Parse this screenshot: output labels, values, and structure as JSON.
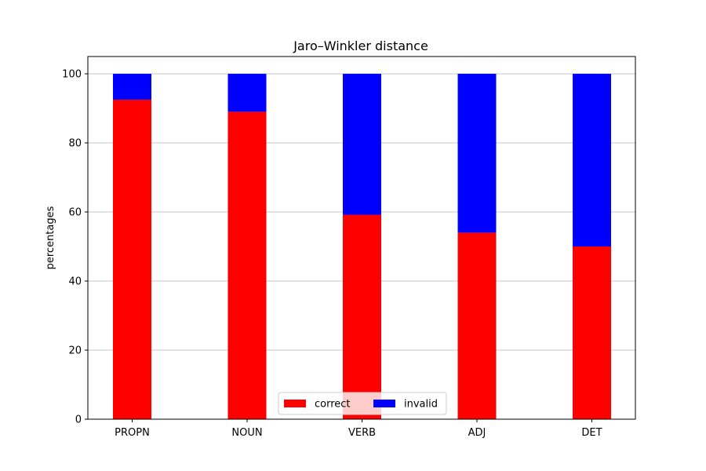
{
  "chart_data": {
    "type": "bar",
    "stacked": true,
    "title": "Jaro–Winkler distance",
    "xlabel": "",
    "ylabel": "percentages",
    "ylim": [
      0,
      105
    ],
    "yticks": [
      0,
      20,
      40,
      60,
      80,
      100
    ],
    "categories": [
      "PROPN",
      "NOUN",
      "VERB",
      "ADJ",
      "DET"
    ],
    "series": [
      {
        "name": "correct",
        "color": "#ff0000",
        "values": [
          92.5,
          89,
          59.2,
          54,
          50
        ]
      },
      {
        "name": "invalid",
        "color": "#0000ff",
        "values": [
          7.5,
          11,
          40.8,
          46,
          50
        ]
      }
    ],
    "grid": {
      "y": true,
      "x": false
    },
    "legend": {
      "placement": "lower-center",
      "columns": 2
    }
  }
}
